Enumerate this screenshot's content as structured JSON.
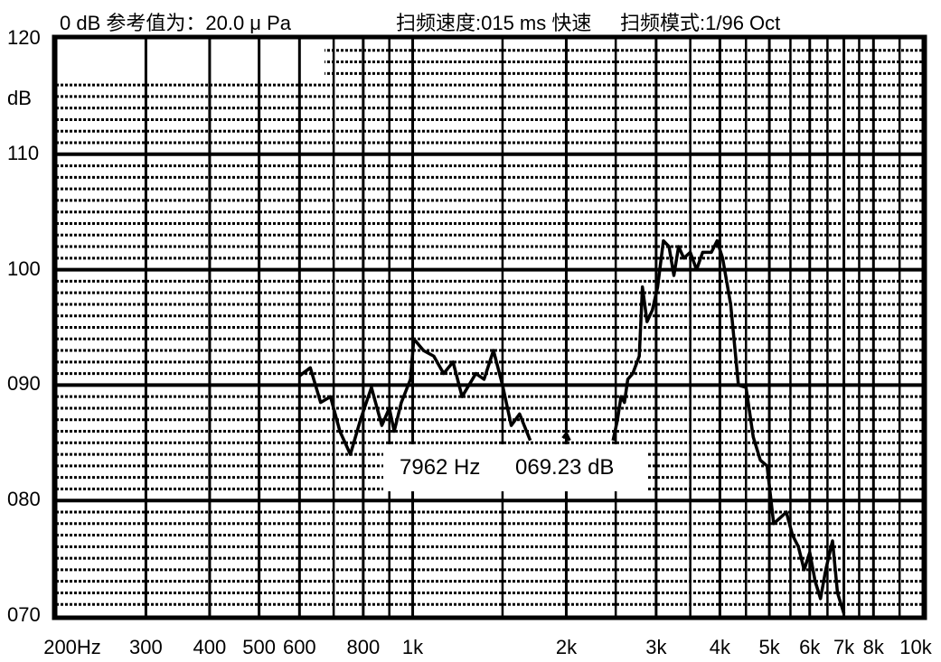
{
  "header": {
    "reference": "0  dB  参考值为：20.0 μ Pa",
    "sweep_speed": "扫频速度:015  ms  快速",
    "sweep_mode": "扫频模式:1/96  Oct"
  },
  "readout": {
    "frequency": "7962  Hz",
    "level": "069.23  dB"
  },
  "chart_data": {
    "type": "line",
    "x_scale": "log",
    "xlim": [
      200,
      10000
    ],
    "ylim": [
      70,
      120
    ],
    "ylabel": "dB",
    "y_ticks": [
      "070",
      "080",
      "090",
      "100",
      "110",
      "120"
    ],
    "y_tick_values": [
      70,
      80,
      90,
      100,
      110,
      120
    ],
    "x_ticks": [
      "200Hz",
      "300",
      "400",
      "500",
      "600",
      "800",
      "1k",
      "2k",
      "3k",
      "4k",
      "5k",
      "6k",
      "7k",
      "8k",
      "10k"
    ],
    "x_tick_values": [
      200,
      300,
      400,
      500,
      600,
      800,
      1000,
      2000,
      3000,
      4000,
      5000,
      6000,
      7000,
      8000,
      10000
    ],
    "grid": true,
    "series": [
      {
        "segments": [
          [
            [
              600,
              90.8
            ],
            [
              630,
              91.5
            ],
            [
              660,
              88.5
            ],
            [
              690,
              89.0
            ],
            [
              720,
              86.0
            ],
            [
              755,
              84.0
            ],
            [
              790,
              87.0
            ],
            [
              830,
              89.8
            ],
            [
              870,
              86.5
            ],
            [
              900,
              88.0
            ],
            [
              920,
              86.0
            ],
            [
              950,
              88.5
            ],
            [
              990,
              90.5
            ],
            [
              1005,
              94.0
            ],
            [
              1050,
              93.0
            ],
            [
              1100,
              92.5
            ],
            [
              1150,
              91.0
            ],
            [
              1200,
              92.0
            ],
            [
              1250,
              89.0
            ],
            [
              1330,
              91.0
            ],
            [
              1380,
              90.5
            ],
            [
              1440,
              93.0
            ],
            [
              1500,
              90.0
            ],
            [
              1560,
              86.5
            ],
            [
              1620,
              87.5
            ],
            [
              1700,
              85.2
            ]
          ],
          [
            [
              1970,
              85.4
            ],
            [
              2000,
              85.8
            ],
            [
              2030,
              85.2
            ]
          ],
          [
            [
              2470,
              85.2
            ],
            [
              2520,
              87.0
            ],
            [
              2560,
              89.0
            ],
            [
              2600,
              88.5
            ],
            [
              2640,
              90.5
            ],
            [
              2700,
              91.0
            ],
            [
              2780,
              92.5
            ],
            [
              2820,
              98.5
            ],
            [
              2880,
              95.5
            ],
            [
              2950,
              96.5
            ],
            [
              3020,
              98.5
            ],
            [
              3100,
              102.5
            ],
            [
              3180,
              102.0
            ],
            [
              3250,
              99.5
            ],
            [
              3320,
              102.0
            ],
            [
              3400,
              101.0
            ],
            [
              3500,
              101.5
            ],
            [
              3600,
              100.0
            ],
            [
              3700,
              101.5
            ],
            [
              3850,
              101.5
            ],
            [
              3950,
              102.5
            ],
            [
              4050,
              101.0
            ],
            [
              4200,
              97.0
            ],
            [
              4350,
              90.0
            ],
            [
              4500,
              89.8
            ],
            [
              4650,
              85.5
            ],
            [
              4800,
              83.5
            ],
            [
              4950,
              83.0
            ],
            [
              5100,
              78.0
            ],
            [
              5250,
              78.5
            ],
            [
              5400,
              79.0
            ],
            [
              5550,
              77.0
            ],
            [
              5700,
              76.0
            ],
            [
              5850,
              74.0
            ],
            [
              6000,
              75.5
            ],
            [
              6150,
              73.0
            ],
            [
              6300,
              71.5
            ],
            [
              6450,
              74.0
            ],
            [
              6650,
              76.5
            ],
            [
              6800,
              72.0
            ],
            [
              7000,
              70.2
            ]
          ]
        ]
      }
    ]
  }
}
